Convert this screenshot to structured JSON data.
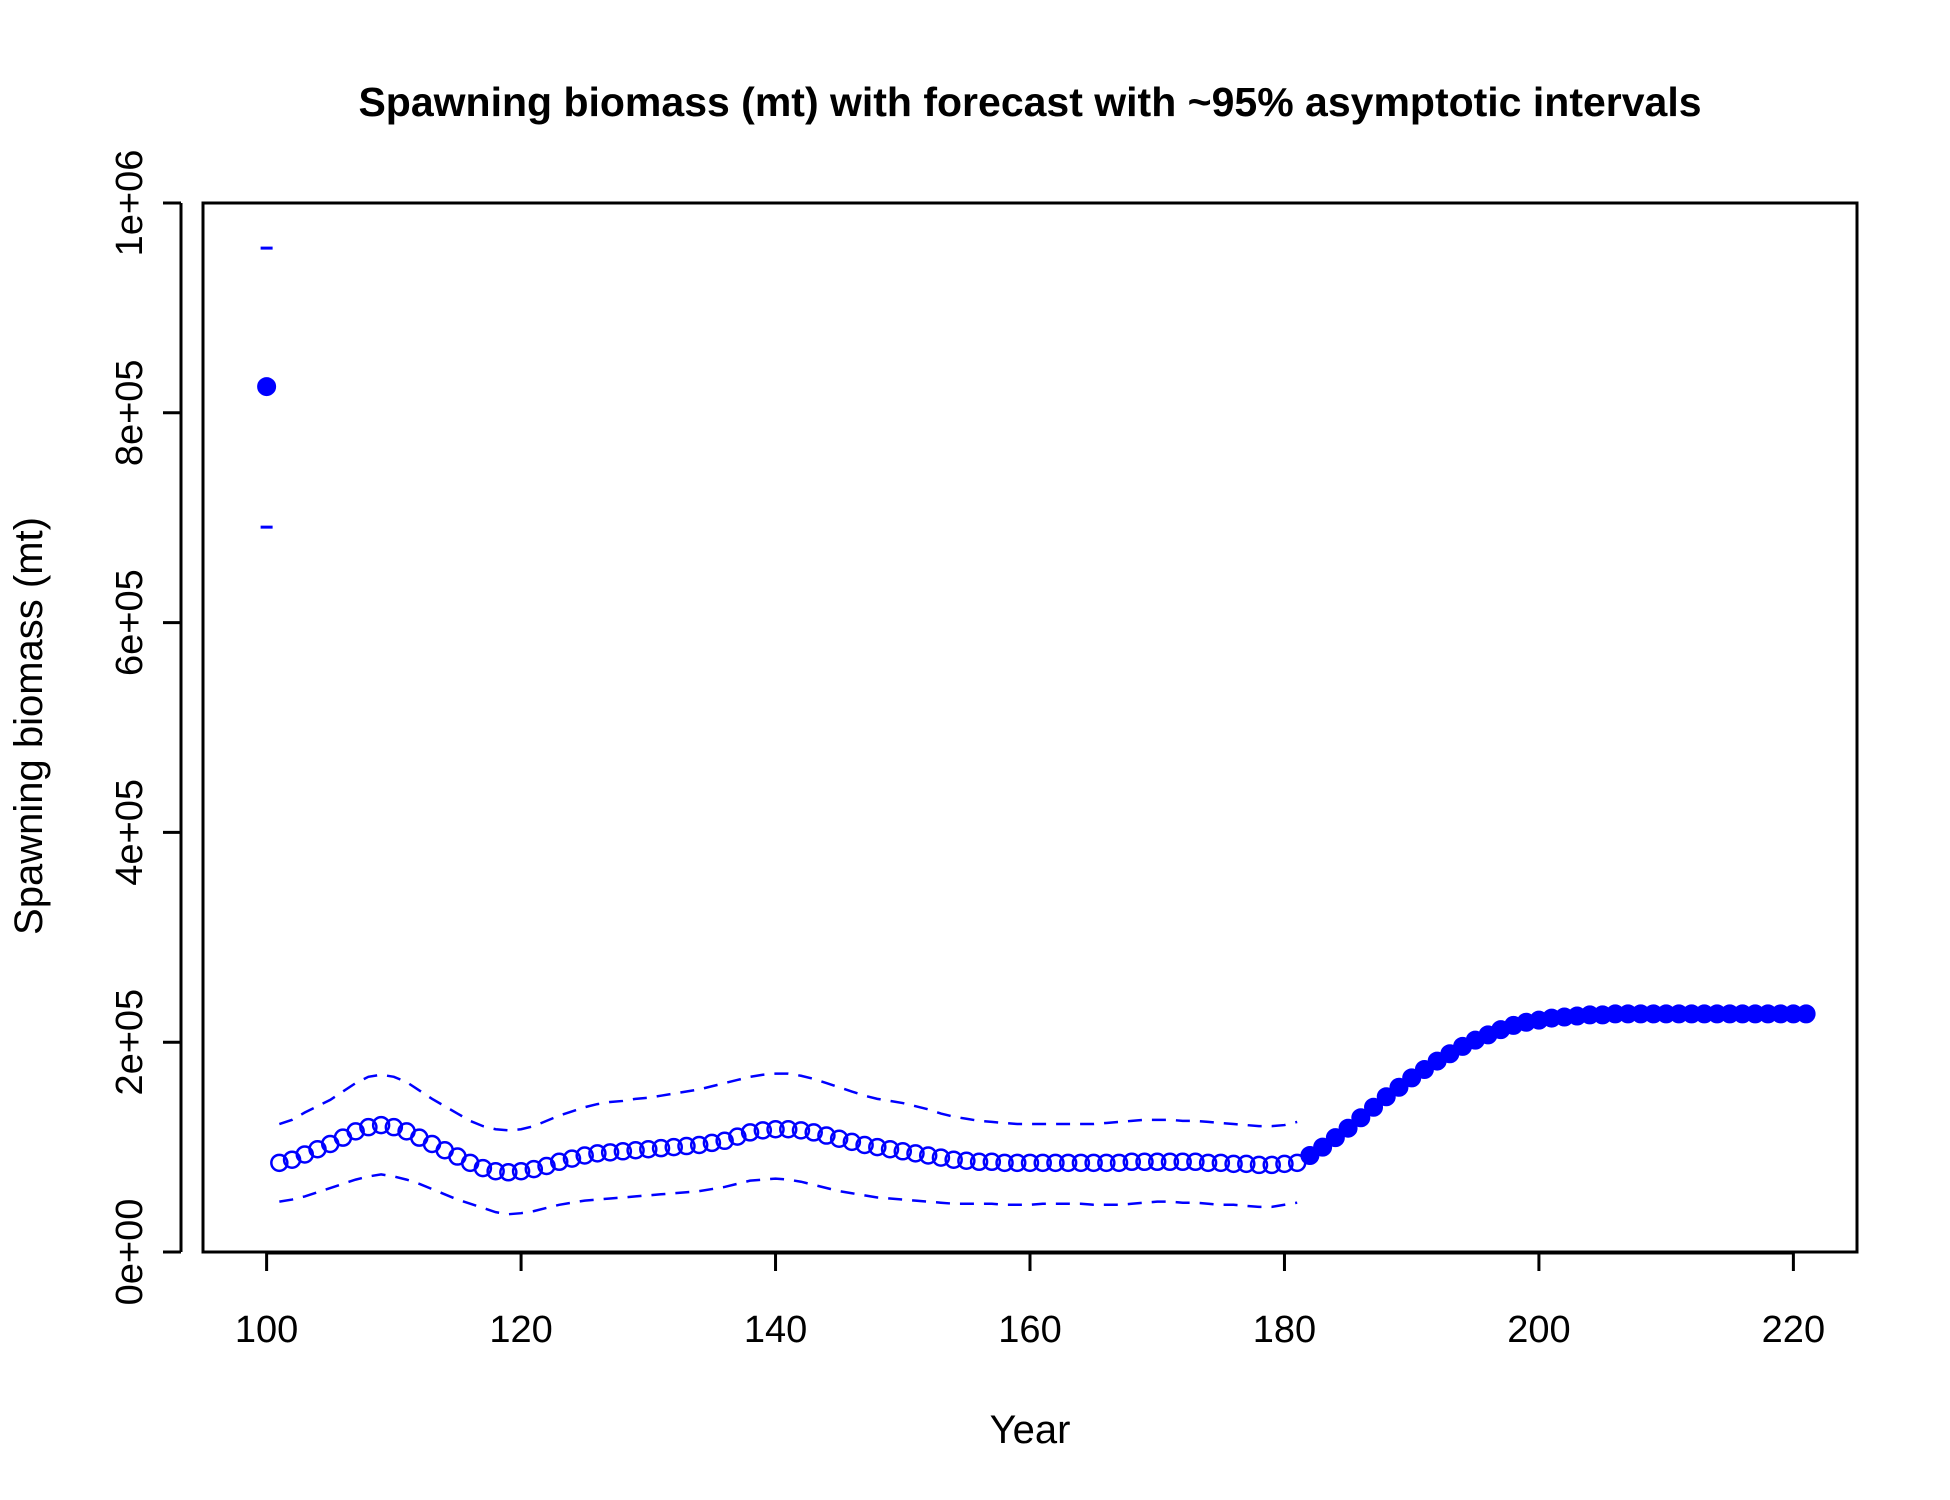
{
  "chart_data": {
    "type": "scatter",
    "title": "Spawning biomass (mt) with forecast with ~95% asymptotic intervals",
    "xlabel": "Year",
    "ylabel": "Spawning biomass (mt)",
    "xlim": [
      95,
      225
    ],
    "ylim": [
      0,
      1000000
    ],
    "x_ticks": [
      100,
      120,
      140,
      160,
      180,
      200,
      220
    ],
    "x_tick_labels": [
      "100",
      "120",
      "140",
      "160",
      "180",
      "200",
      "220"
    ],
    "y_ticks": [
      0,
      200000,
      400000,
      600000,
      800000,
      1000000
    ],
    "y_tick_labels": [
      "0e+00",
      "2e+05",
      "4e+05",
      "6e+05",
      "8e+05",
      "1e+06"
    ],
    "grid": false,
    "color": "#0000ff",
    "series": [
      {
        "kind": "virgin",
        "style": "filled-point",
        "x": [
          100
        ],
        "values": [
          825000
        ],
        "lower": [
          691000
        ],
        "upper": [
          957000
        ]
      },
      {
        "kind": "estimated",
        "style": "open-point",
        "x": [
          101,
          102,
          103,
          104,
          105,
          106,
          107,
          108,
          109,
          110,
          111,
          112,
          113,
          114,
          115,
          116,
          117,
          118,
          119,
          120,
          121,
          122,
          123,
          124,
          125,
          126,
          127,
          128,
          129,
          130,
          131,
          132,
          133,
          134,
          135,
          136,
          137,
          138,
          139,
          140,
          141,
          142,
          143,
          144,
          145,
          146,
          147,
          148,
          149,
          150,
          151,
          152,
          153,
          154,
          155,
          156,
          157,
          158,
          159,
          160,
          161,
          162,
          163,
          164,
          165,
          166,
          167,
          168,
          169,
          170,
          171,
          172,
          173,
          174,
          175,
          176,
          177,
          178,
          179,
          180,
          181
        ],
        "values": [
          85000,
          88000,
          93000,
          98000,
          103000,
          109000,
          115000,
          119000,
          121000,
          119000,
          115000,
          109000,
          103000,
          97000,
          91000,
          85000,
          80000,
          77000,
          76000,
          77000,
          79000,
          82000,
          86000,
          89000,
          92000,
          94000,
          95000,
          96000,
          97000,
          98000,
          99000,
          100000,
          101000,
          102000,
          104000,
          106000,
          110000,
          114000,
          116000,
          117000,
          117000,
          116000,
          114000,
          111000,
          108000,
          105000,
          102000,
          100000,
          98000,
          96000,
          94000,
          92000,
          90000,
          88000,
          87000,
          86000,
          86000,
          85000,
          85000,
          85000,
          85000,
          85000,
          85000,
          85000,
          85000,
          85000,
          85000,
          86000,
          86000,
          86000,
          86000,
          86000,
          86000,
          85000,
          85000,
          84000,
          84000,
          83000,
          83000,
          84000,
          85000
        ],
        "lower": [
          48000,
          50000,
          53000,
          57000,
          61000,
          65000,
          69000,
          72000,
          74000,
          72000,
          69000,
          65000,
          60000,
          55000,
          50000,
          46000,
          42000,
          38000,
          36000,
          37000,
          39000,
          42000,
          45000,
          47000,
          49000,
          50000,
          51000,
          52000,
          53000,
          54000,
          55000,
          56000,
          57000,
          58000,
          60000,
          62000,
          65000,
          68000,
          69000,
          70000,
          69000,
          67000,
          64000,
          61000,
          58000,
          56000,
          54000,
          52000,
          51000,
          50000,
          49000,
          48000,
          47000,
          46000,
          46000,
          46000,
          46000,
          45000,
          45000,
          45000,
          46000,
          46000,
          46000,
          46000,
          45000,
          45000,
          45000,
          46000,
          47000,
          48000,
          48000,
          47000,
          47000,
          46000,
          45000,
          45000,
          44000,
          43000,
          43000,
          45000,
          47000
        ],
        "upper": [
          122000,
          126000,
          133000,
          139000,
          145000,
          153000,
          161000,
          167000,
          169000,
          167000,
          162000,
          154000,
          146000,
          139000,
          132000,
          125000,
          120000,
          117000,
          116000,
          117000,
          120000,
          125000,
          130000,
          134000,
          138000,
          141000,
          143000,
          144000,
          146000,
          147000,
          149000,
          151000,
          153000,
          155000,
          158000,
          161000,
          164000,
          167000,
          169000,
          170000,
          170000,
          168000,
          165000,
          161000,
          157000,
          153000,
          149000,
          146000,
          144000,
          142000,
          139000,
          136000,
          132000,
          129000,
          127000,
          125000,
          124000,
          123000,
          122000,
          122000,
          122000,
          122000,
          122000,
          122000,
          122000,
          123000,
          124000,
          125000,
          126000,
          126000,
          126000,
          125000,
          125000,
          124000,
          123000,
          122000,
          121000,
          120000,
          120000,
          121000,
          124000
        ]
      },
      {
        "kind": "forecast",
        "style": "filled-point",
        "x": [
          182,
          183,
          184,
          185,
          186,
          187,
          188,
          189,
          190,
          191,
          192,
          193,
          194,
          195,
          196,
          197,
          198,
          199,
          200,
          201,
          202,
          203,
          204,
          205,
          206,
          207,
          208,
          209,
          210,
          211,
          212,
          213,
          214,
          215,
          216,
          217,
          218,
          219,
          220,
          221
        ],
        "values": [
          92000,
          100000,
          109000,
          118000,
          128000,
          138000,
          148000,
          157000,
          166000,
          174000,
          182000,
          189000,
          196000,
          202000,
          207000,
          212000,
          216000,
          219000,
          221000,
          223000,
          224000,
          225000,
          226000,
          226000,
          227000,
          227000,
          227000,
          227000,
          227000,
          227000,
          227000,
          227000,
          227000,
          227000,
          227000,
          227000,
          227000,
          227000,
          227000,
          227000
        ]
      }
    ]
  }
}
